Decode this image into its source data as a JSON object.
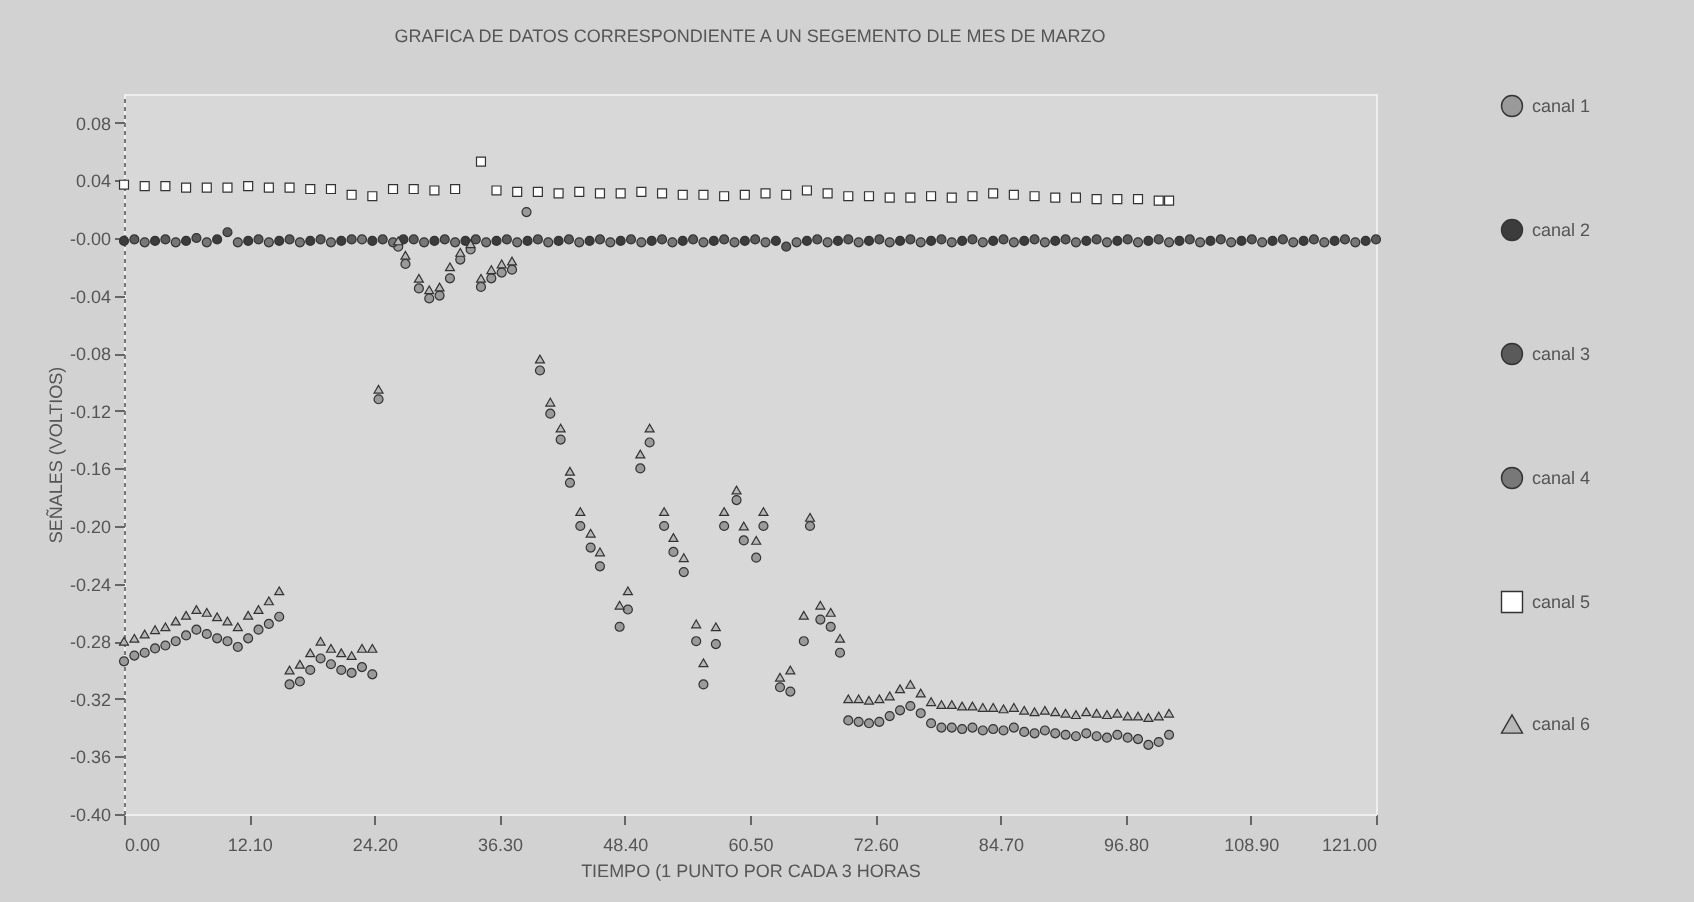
{
  "chart_data": {
    "type": "scatter",
    "title": "GRAFICA DE DATOS CORRESPONDIENTE A UN SEGEMENTO DLE MES DE MARZO",
    "xlabel": "TIEMPO (1 PUNTO POR CADA 3 HORAS",
    "ylabel": "SEÑALES (VOLTIOS)",
    "xlim": [
      0,
      121
    ],
    "xticks": [
      {
        "value": 0,
        "label": "0.00"
      },
      {
        "value": 12.1,
        "label": "12.10"
      },
      {
        "value": 24.2,
        "label": "24.20"
      },
      {
        "value": 36.3,
        "label": "36.30"
      },
      {
        "value": 48.4,
        "label": "48.40"
      },
      {
        "value": 60.5,
        "label": "60.50"
      },
      {
        "value": 72.6,
        "label": "72.60"
      },
      {
        "value": 84.7,
        "label": "84.70"
      },
      {
        "value": 96.8,
        "label": "96.80"
      },
      {
        "value": 108.9,
        "label": "108.90"
      },
      {
        "value": 121,
        "label": "121.00"
      }
    ],
    "ylim": [
      -0.4,
      0.1
    ],
    "yticks": [
      {
        "value": 0.08,
        "label": "0.08"
      },
      {
        "value": 0.04,
        "label": "0.04"
      },
      {
        "value": 0,
        "label": "-0.00"
      },
      {
        "value": -0.04,
        "label": "-0.04"
      },
      {
        "value": -0.08,
        "label": "-0.08"
      },
      {
        "value": -0.12,
        "label": "-0.12"
      },
      {
        "value": -0.16,
        "label": "-0.16"
      },
      {
        "value": -0.2,
        "label": "-0.20"
      },
      {
        "value": -0.24,
        "label": "-0.24"
      },
      {
        "value": -0.28,
        "label": "-0.28"
      },
      {
        "value": -0.32,
        "label": "-0.32"
      },
      {
        "value": -0.36,
        "label": "-0.36"
      },
      {
        "value": -0.4,
        "label": "-0.40"
      }
    ],
    "grid": false,
    "legend": "right",
    "series": [
      {
        "name": "canal 1",
        "color": "#9a9a9a",
        "marker": "circle",
        "x": [
          0,
          1,
          2,
          3,
          4,
          5,
          6,
          7,
          8,
          9,
          10,
          11,
          12,
          13,
          14,
          15,
          16,
          17,
          18,
          19,
          20,
          21,
          22,
          23,
          24,
          24.6,
          26.5,
          27.2,
          28.5,
          29.5,
          30.5,
          31.5,
          32.5,
          33.5,
          34.5,
          35.5,
          36.5,
          37.5,
          38.9,
          40.2,
          41.2,
          42.2,
          43.1,
          44.1,
          45.1,
          46,
          47.9,
          48.7,
          49.9,
          50.8,
          52.2,
          53.1,
          54.1,
          55.3,
          56,
          57.2,
          58,
          59.2,
          59.9,
          61.1,
          61.8,
          63.4,
          64.4,
          65.7,
          66.3,
          67.3,
          68.3,
          69.2,
          70,
          71,
          72,
          73,
          74,
          75,
          76,
          77,
          78,
          79,
          80,
          81,
          82,
          83,
          84,
          85,
          86,
          87,
          88,
          89,
          90,
          91,
          92,
          93,
          94,
          95,
          96,
          97,
          98,
          99,
          100,
          101
        ],
        "values": [
          -0.294,
          -0.29,
          -0.288,
          -0.285,
          -0.283,
          -0.28,
          -0.276,
          -0.272,
          -0.275,
          -0.278,
          -0.28,
          -0.284,
          -0.278,
          -0.272,
          -0.268,
          -0.263,
          -0.31,
          -0.308,
          -0.3,
          -0.292,
          -0.296,
          -0.3,
          -0.302,
          -0.298,
          -0.303,
          -0.112,
          -0.006,
          -0.018,
          -0.035,
          -0.042,
          -0.04,
          -0.028,
          -0.015,
          -0.008,
          -0.034,
          -0.028,
          -0.024,
          -0.022,
          0.018,
          -0.092,
          -0.122,
          -0.14,
          -0.17,
          -0.2,
          -0.215,
          -0.228,
          -0.27,
          -0.258,
          -0.16,
          -0.142,
          -0.2,
          -0.218,
          -0.232,
          -0.28,
          -0.31,
          -0.282,
          -0.2,
          -0.182,
          -0.21,
          -0.222,
          -0.2,
          -0.312,
          -0.315,
          -0.28,
          -0.2,
          -0.265,
          -0.27,
          -0.288,
          -0.335,
          -0.336,
          -0.337,
          -0.336,
          -0.332,
          -0.328,
          -0.325,
          -0.33,
          -0.337,
          -0.34,
          -0.34,
          -0.341,
          -0.34,
          -0.342,
          -0.341,
          -0.342,
          -0.34,
          -0.343,
          -0.344,
          -0.342,
          -0.344,
          -0.345,
          -0.346,
          -0.344,
          -0.346,
          -0.347,
          -0.345,
          -0.347,
          -0.348,
          -0.352,
          -0.35,
          -0.345
        ]
      },
      {
        "name": "canal 2",
        "color": "#3c3c3c",
        "marker": "circle",
        "x": [
          0,
          3,
          6,
          9,
          12,
          15,
          18,
          21,
          24,
          27,
          30,
          33,
          36,
          39,
          42,
          45,
          48,
          51,
          54,
          57,
          60,
          63,
          66,
          69,
          72,
          75,
          78,
          81,
          84,
          87,
          90,
          93,
          96,
          99,
          102,
          105,
          108,
          111,
          114,
          117,
          120
        ],
        "values": [
          -0.002,
          -0.002,
          -0.002,
          -0.001,
          -0.002,
          -0.002,
          -0.002,
          -0.002,
          -0.002,
          -0.001,
          -0.002,
          -0.002,
          -0.002,
          -0.002,
          -0.002,
          -0.002,
          -0.002,
          -0.002,
          -0.002,
          -0.002,
          -0.002,
          -0.002,
          -0.002,
          -0.002,
          -0.002,
          -0.002,
          -0.002,
          -0.002,
          -0.002,
          -0.002,
          -0.002,
          -0.002,
          -0.002,
          -0.002,
          -0.002,
          -0.002,
          -0.002,
          -0.002,
          -0.002,
          -0.002,
          -0.002
        ]
      },
      {
        "name": "canal 3",
        "color": "#5a5a5a",
        "marker": "circle",
        "x": [
          1,
          4,
          7,
          10,
          13,
          16,
          19,
          22,
          25,
          28,
          31,
          34,
          37,
          40,
          43,
          46,
          49,
          52,
          55,
          58,
          61,
          64,
          67,
          70,
          73,
          76,
          79,
          82,
          85,
          88,
          91,
          94,
          97,
          100,
          103,
          106,
          109,
          112,
          115,
          118,
          121
        ],
        "values": [
          -0.001,
          -0.001,
          0,
          0.004,
          -0.001,
          -0.001,
          -0.001,
          -0.001,
          -0.001,
          -0.001,
          -0.001,
          -0.001,
          -0.001,
          -0.001,
          -0.001,
          -0.001,
          -0.001,
          -0.001,
          -0.001,
          -0.001,
          -0.001,
          -0.006,
          -0.001,
          -0.001,
          -0.001,
          -0.001,
          -0.001,
          -0.001,
          -0.001,
          -0.001,
          -0.001,
          -0.001,
          -0.001,
          -0.001,
          -0.001,
          -0.001,
          -0.001,
          -0.001,
          -0.001,
          -0.001,
          -0.001
        ]
      },
      {
        "name": "canal 4",
        "color": "#787878",
        "marker": "circle",
        "x": [
          2,
          5,
          8,
          11,
          14,
          17,
          20,
          23,
          26,
          29,
          32,
          35,
          38,
          41,
          44,
          47,
          50,
          53,
          56,
          59,
          62,
          65,
          68,
          71,
          74,
          77,
          80,
          83,
          86,
          89,
          92,
          95,
          98,
          101,
          104,
          107,
          110,
          113,
          116,
          119
        ],
        "values": [
          -0.003,
          -0.003,
          -0.003,
          -0.003,
          -0.003,
          -0.003,
          -0.003,
          -0.001,
          -0.003,
          -0.003,
          -0.003,
          -0.003,
          -0.003,
          -0.003,
          -0.003,
          -0.003,
          -0.003,
          -0.003,
          -0.003,
          -0.003,
          -0.003,
          -0.003,
          -0.003,
          -0.003,
          -0.003,
          -0.003,
          -0.003,
          -0.003,
          -0.003,
          -0.003,
          -0.003,
          -0.003,
          -0.003,
          -0.003,
          -0.003,
          -0.003,
          -0.003,
          -0.003,
          -0.003,
          -0.003
        ]
      },
      {
        "name": "canal 5",
        "color": "#ffffff",
        "marker": "square",
        "x": [
          0,
          2,
          4,
          6,
          8,
          10,
          12,
          14,
          16,
          18,
          20,
          22,
          24,
          26,
          28,
          30,
          32,
          34.5,
          36,
          38,
          40,
          42,
          44,
          46,
          48,
          50,
          52,
          54,
          56,
          58,
          60,
          62,
          64,
          66,
          68,
          70,
          72,
          74,
          76,
          78,
          80,
          82,
          84,
          86,
          88,
          90,
          92,
          94,
          96,
          98,
          100,
          101
        ],
        "values": [
          0.037,
          0.036,
          0.036,
          0.035,
          0.035,
          0.035,
          0.036,
          0.035,
          0.035,
          0.034,
          0.034,
          0.03,
          0.029,
          0.034,
          0.034,
          0.033,
          0.034,
          0.053,
          0.033,
          0.032,
          0.032,
          0.031,
          0.032,
          0.031,
          0.031,
          0.032,
          0.031,
          0.03,
          0.03,
          0.029,
          0.03,
          0.031,
          0.03,
          0.033,
          0.031,
          0.029,
          0.029,
          0.028,
          0.028,
          0.029,
          0.028,
          0.029,
          0.031,
          0.03,
          0.029,
          0.028,
          0.028,
          0.027,
          0.027,
          0.027,
          0.026,
          0.026
        ]
      },
      {
        "name": "canal 6",
        "color": "#b8b8b8",
        "marker": "triangle",
        "x": [
          0,
          1,
          2,
          3,
          4,
          5,
          6,
          7,
          8,
          9,
          10,
          11,
          12,
          13,
          14,
          15,
          16,
          17,
          18,
          19,
          20,
          21,
          22,
          23,
          24,
          24.6,
          26.5,
          27.2,
          28.5,
          29.5,
          30.5,
          31.5,
          32.5,
          33.5,
          34.5,
          35.5,
          36.5,
          37.5,
          40.2,
          41.2,
          42.2,
          43.1,
          44.1,
          45.1,
          46,
          47.9,
          48.7,
          49.9,
          50.8,
          52.2,
          53.1,
          54.1,
          55.3,
          56,
          57.2,
          58,
          59.2,
          59.9,
          61.1,
          61.8,
          63.4,
          64.4,
          65.7,
          66.3,
          67.3,
          68.3,
          69.2,
          70,
          71,
          72,
          73,
          74,
          75,
          76,
          77,
          78,
          79,
          80,
          81,
          82,
          83,
          84,
          85,
          86,
          87,
          88,
          89,
          90,
          91,
          92,
          93,
          94,
          95,
          96,
          97,
          98,
          99,
          100,
          101
        ],
        "values": [
          -0.28,
          -0.278,
          -0.275,
          -0.272,
          -0.27,
          -0.266,
          -0.262,
          -0.258,
          -0.26,
          -0.263,
          -0.266,
          -0.27,
          -0.262,
          -0.258,
          -0.252,
          -0.245,
          -0.3,
          -0.296,
          -0.288,
          -0.28,
          -0.285,
          -0.288,
          -0.29,
          -0.285,
          -0.285,
          -0.105,
          -0.002,
          -0.012,
          -0.028,
          -0.036,
          -0.034,
          -0.02,
          -0.01,
          -0.004,
          -0.028,
          -0.022,
          -0.018,
          -0.016,
          -0.084,
          -0.114,
          -0.132,
          -0.162,
          -0.19,
          -0.205,
          -0.218,
          -0.255,
          -0.245,
          -0.15,
          -0.132,
          -0.19,
          -0.208,
          -0.222,
          -0.268,
          -0.295,
          -0.27,
          -0.19,
          -0.175,
          -0.2,
          -0.21,
          -0.19,
          -0.305,
          -0.3,
          -0.262,
          -0.194,
          -0.255,
          -0.26,
          -0.278,
          -0.32,
          -0.32,
          -0.321,
          -0.32,
          -0.318,
          -0.313,
          -0.31,
          -0.316,
          -0.322,
          -0.324,
          -0.324,
          -0.325,
          -0.325,
          -0.326,
          -0.326,
          -0.327,
          -0.326,
          -0.328,
          -0.329,
          -0.328,
          -0.329,
          -0.33,
          -0.331,
          -0.329,
          -0.33,
          -0.331,
          -0.33,
          -0.332,
          -0.332,
          -0.333,
          -0.332,
          -0.33
        ]
      }
    ]
  }
}
